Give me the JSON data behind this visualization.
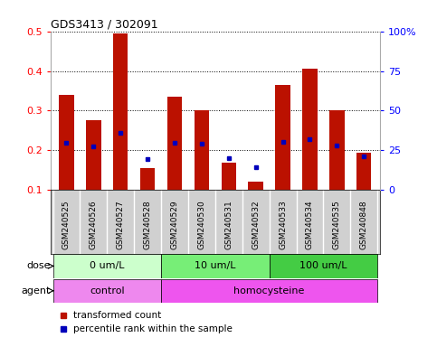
{
  "title": "GDS3413 / 302091",
  "samples": [
    "GSM240525",
    "GSM240526",
    "GSM240527",
    "GSM240528",
    "GSM240529",
    "GSM240530",
    "GSM240531",
    "GSM240532",
    "GSM240533",
    "GSM240534",
    "GSM240535",
    "GSM240848"
  ],
  "transformed_count": [
    0.34,
    0.275,
    0.495,
    0.155,
    0.335,
    0.3,
    0.17,
    0.122,
    0.365,
    0.405,
    0.3,
    0.195
  ],
  "percentile_rank": [
    0.22,
    0.21,
    0.245,
    0.178,
    0.22,
    0.218,
    0.18,
    0.157,
    0.222,
    0.228,
    0.212,
    0.185
  ],
  "ylim_left": [
    0.1,
    0.5
  ],
  "ylim_right": [
    0,
    100
  ],
  "yticks_left": [
    0.1,
    0.2,
    0.3,
    0.4,
    0.5
  ],
  "ytick_labels_left": [
    "0.1",
    "0.2",
    "0.3",
    "0.4",
    "0.5"
  ],
  "yticks_right": [
    0,
    25,
    50,
    75,
    100
  ],
  "ytick_labels_right": [
    "0",
    "25",
    "50",
    "75",
    "100%"
  ],
  "dose_groups": [
    {
      "label": "0 um/L",
      "start": 0,
      "end": 4,
      "color": "#ccffcc"
    },
    {
      "label": "10 um/L",
      "start": 4,
      "end": 8,
      "color": "#77ee77"
    },
    {
      "label": "100 um/L",
      "start": 8,
      "end": 12,
      "color": "#44cc44"
    }
  ],
  "agent_groups": [
    {
      "label": "control",
      "start": 0,
      "end": 4,
      "color": "#ee88ee"
    },
    {
      "label": "homocysteine",
      "start": 4,
      "end": 12,
      "color": "#ee55ee"
    }
  ],
  "bar_color": "#bb1100",
  "dot_color": "#0000bb",
  "bar_width": 0.55,
  "legend_items": [
    {
      "color": "#bb1100",
      "label": "transformed count"
    },
    {
      "color": "#0000bb",
      "label": "percentile rank within the sample"
    }
  ],
  "dose_label": "dose",
  "agent_label": "agent",
  "xtick_bg": "#d0d0d0",
  "plot_bg": "#ffffff"
}
